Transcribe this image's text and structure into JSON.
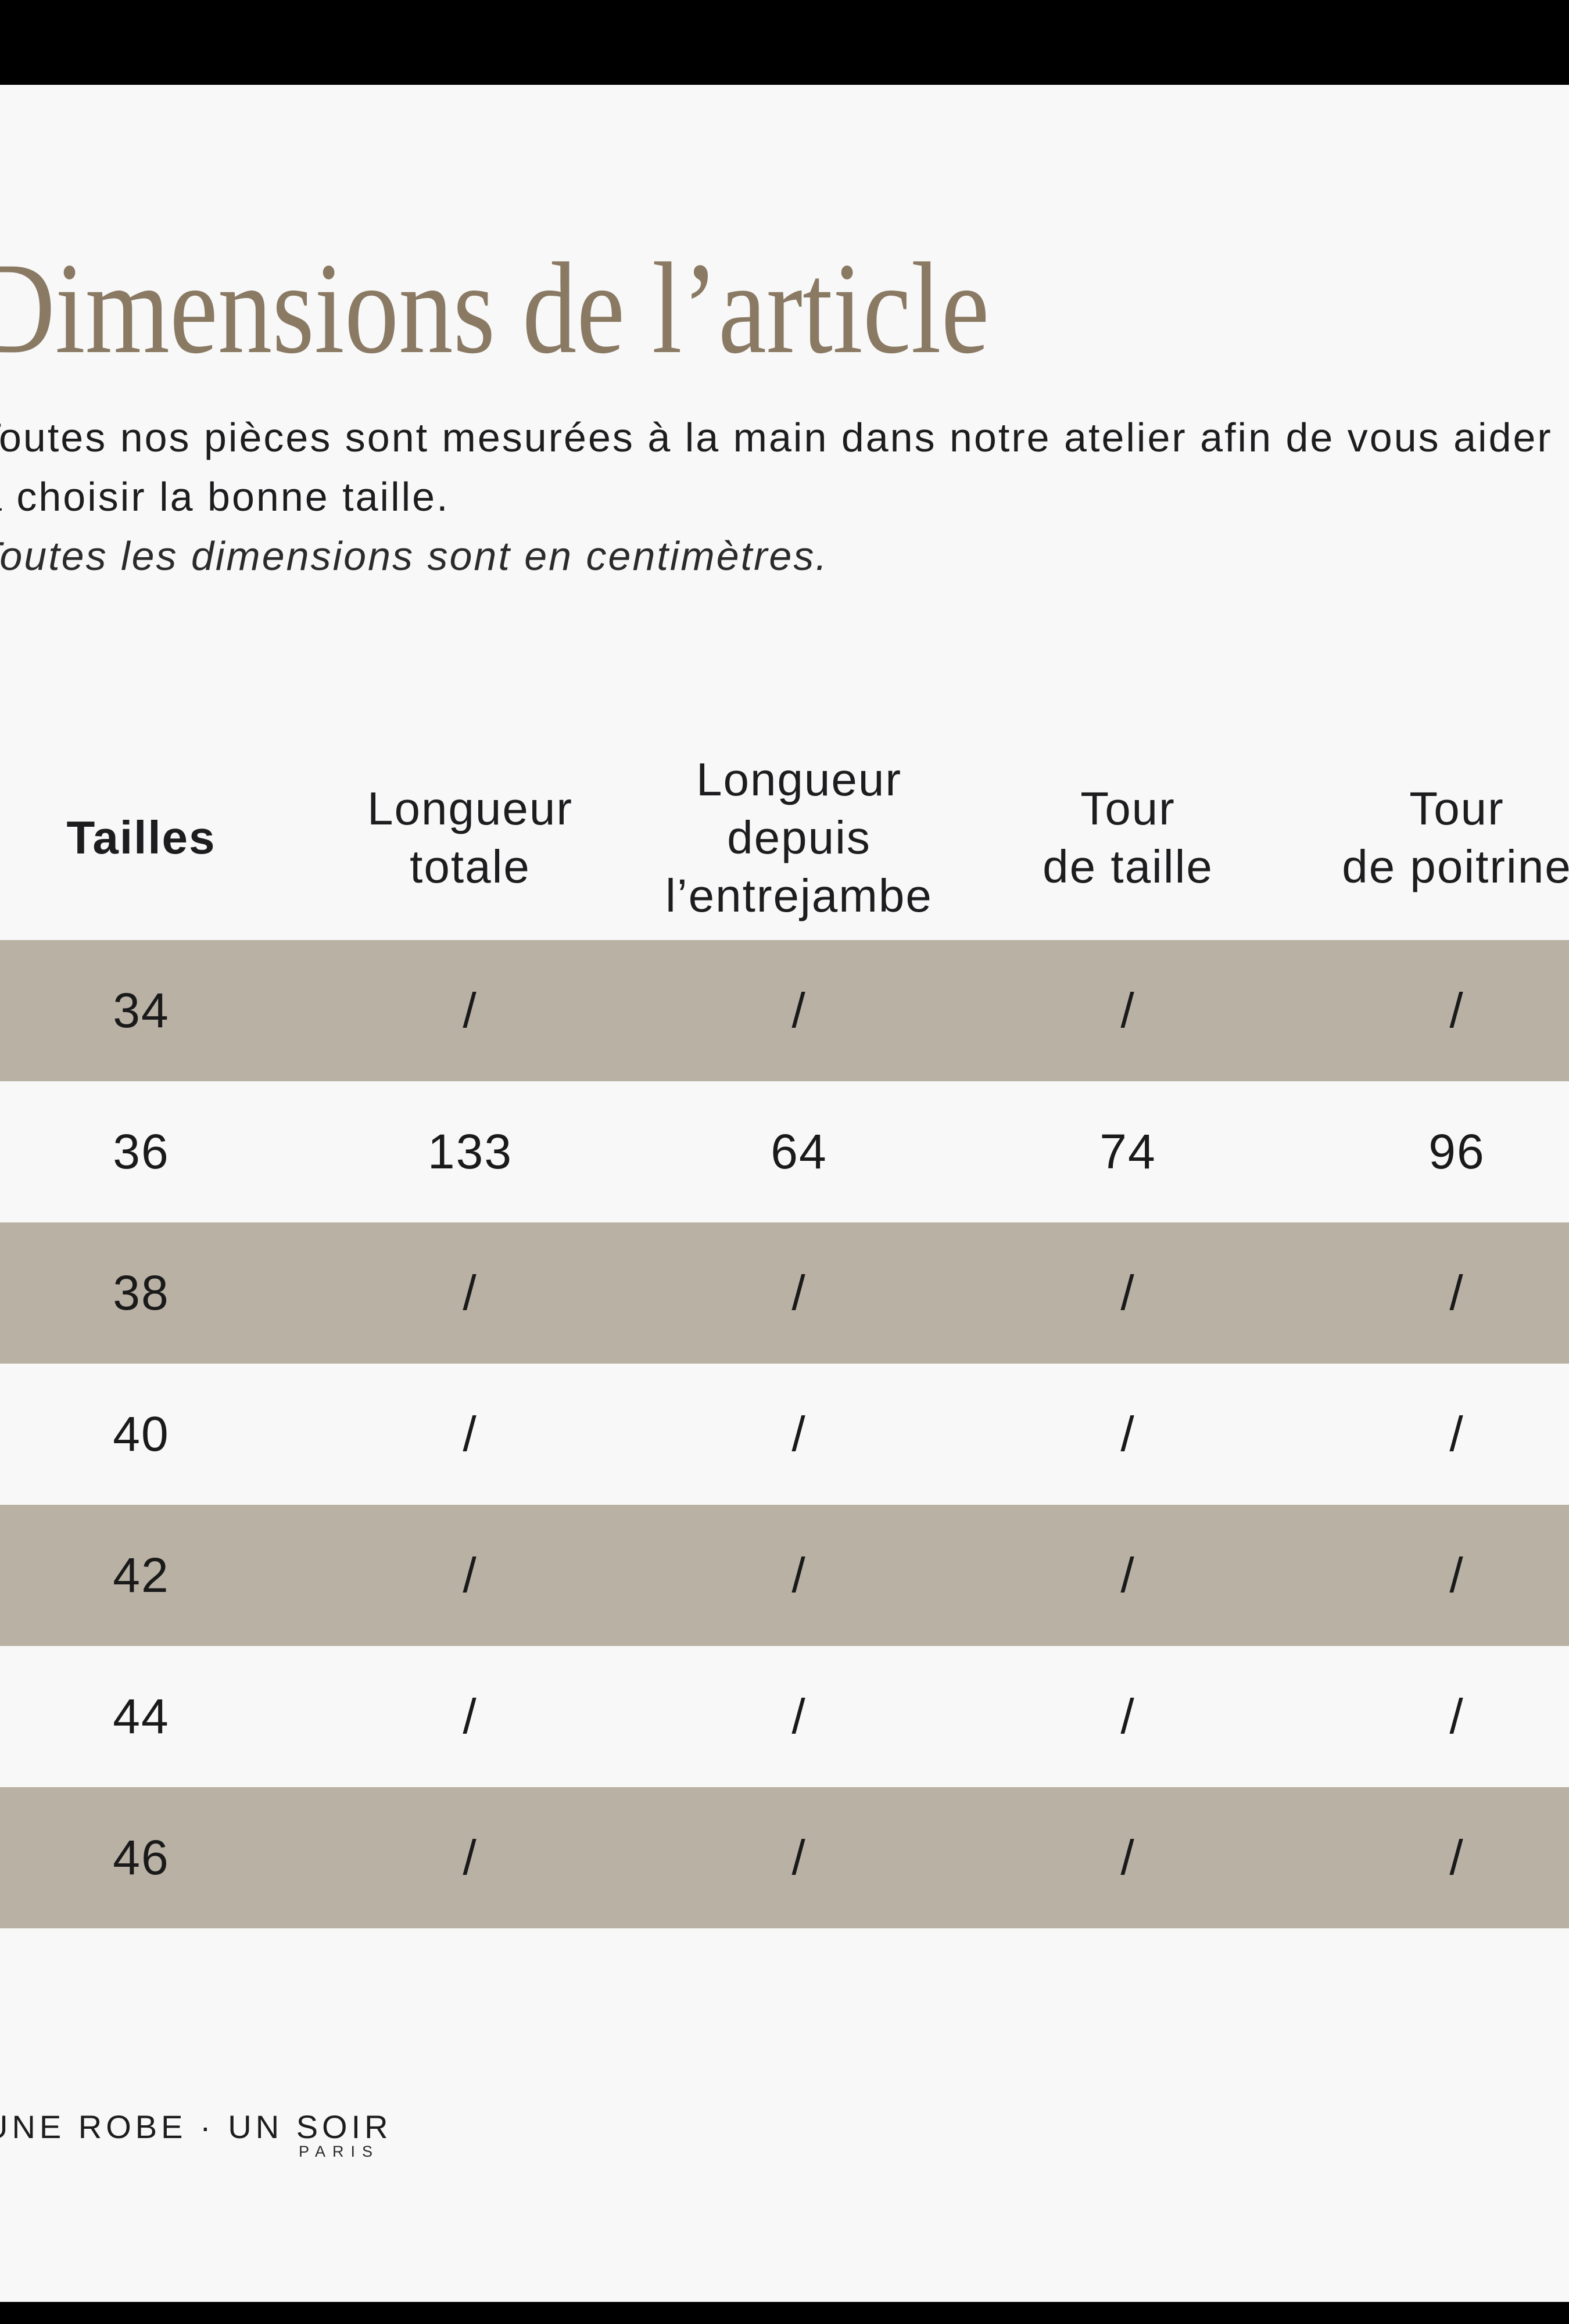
{
  "title": "Dimensions de l’article",
  "intro": {
    "line1": "Toutes nos pièces sont mesurées à la main dans notre atelier afin de vous aider",
    "line2": "à choisir la bonne taille.",
    "note": "Toutes les dimensions sont en centimètres."
  },
  "table": {
    "headers": [
      {
        "label": "Tailles",
        "lines": [
          "Tailles"
        ]
      },
      {
        "label": "Longueur totale",
        "lines": [
          "Longueur",
          "totale"
        ]
      },
      {
        "label": "Longueur depuis l’entrejambe",
        "lines": [
          "Longueur",
          "depuis",
          "l’entrejambe"
        ]
      },
      {
        "label": "Tour de taille",
        "lines": [
          "Tour",
          "de taille"
        ]
      },
      {
        "label": "Tour de poitrine",
        "lines": [
          "Tour",
          "de poitrine"
        ]
      }
    ],
    "rows": [
      {
        "size": "34",
        "values": [
          "/",
          "/",
          "/",
          "/"
        ]
      },
      {
        "size": "36",
        "values": [
          "133",
          "64",
          "74",
          "96"
        ]
      },
      {
        "size": "38",
        "values": [
          "/",
          "/",
          "/",
          "/"
        ]
      },
      {
        "size": "40",
        "values": [
          "/",
          "/",
          "/",
          "/"
        ]
      },
      {
        "size": "42",
        "values": [
          "/",
          "/",
          "/",
          "/"
        ]
      },
      {
        "size": "44",
        "values": [
          "/",
          "/",
          "/",
          "/"
        ]
      },
      {
        "size": "46",
        "values": [
          "/",
          "/",
          "/",
          "/"
        ]
      }
    ]
  },
  "footer": {
    "brand": "UNE ROBE · UN SOIR",
    "city": "PARIS"
  },
  "colors": {
    "background": "#f8f8f8",
    "row_alternate": "#b9b1a4",
    "title": "#8a7a64",
    "text": "#1d1d1f",
    "bar": "#000000"
  }
}
